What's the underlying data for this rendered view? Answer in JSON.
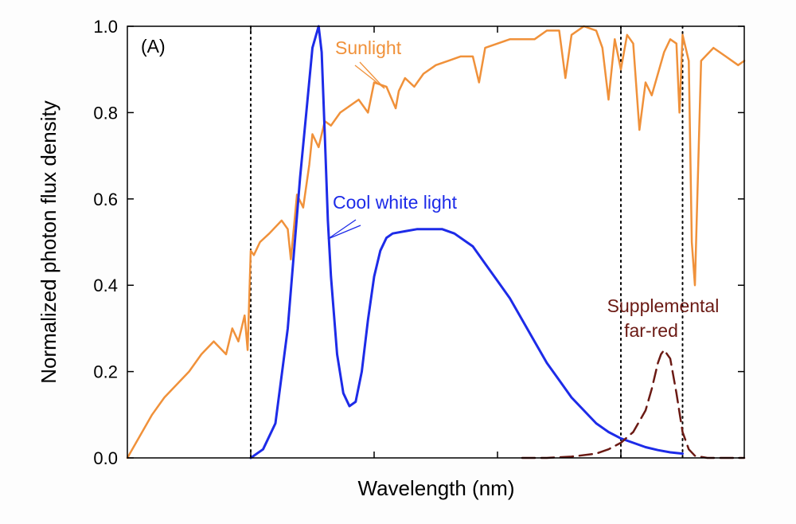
{
  "chart_data": {
    "type": "line",
    "panel_label": "(A)",
    "xlabel": "Wavelength (nm)",
    "ylabel": "Normalized photon flux density",
    "ylim": [
      0,
      1
    ],
    "xlim": [
      0,
      1
    ],
    "y_ticks": [
      "0.0",
      "0.2",
      "0.4",
      "0.6",
      "0.8",
      "1.0"
    ],
    "x_tick_labels_shown": false,
    "grid": false,
    "region_dividers": [
      0.2,
      0.8,
      0.9
    ],
    "colors": {
      "sunlight": "#f0913a",
      "cool_white": "#1d2be8",
      "far_red": "#6b1a14"
    },
    "annotations": {
      "sunlight": "Sunlight",
      "cool_white": "Cool white light",
      "far_red_line1": "Supplemental",
      "far_red_line2": "far-red"
    },
    "series": [
      {
        "name": "Sunlight",
        "style": "solid",
        "x": [
          0.0,
          0.02,
          0.04,
          0.06,
          0.08,
          0.1,
          0.12,
          0.14,
          0.16,
          0.17,
          0.18,
          0.19,
          0.195,
          0.2,
          0.205,
          0.215,
          0.23,
          0.25,
          0.26,
          0.265,
          0.275,
          0.285,
          0.295,
          0.3,
          0.31,
          0.32,
          0.33,
          0.345,
          0.355,
          0.375,
          0.39,
          0.4,
          0.42,
          0.435,
          0.44,
          0.45,
          0.465,
          0.48,
          0.5,
          0.52,
          0.54,
          0.56,
          0.57,
          0.58,
          0.6,
          0.62,
          0.64,
          0.66,
          0.68,
          0.7,
          0.71,
          0.72,
          0.74,
          0.76,
          0.77,
          0.78,
          0.79,
          0.8,
          0.81,
          0.82,
          0.83,
          0.84,
          0.85,
          0.87,
          0.88,
          0.89,
          0.895,
          0.9,
          0.91,
          0.915,
          0.92,
          0.93,
          0.95,
          0.97,
          0.99,
          1.0
        ],
        "values": [
          0.0,
          0.05,
          0.1,
          0.14,
          0.17,
          0.2,
          0.24,
          0.27,
          0.24,
          0.3,
          0.27,
          0.33,
          0.25,
          0.48,
          0.47,
          0.5,
          0.52,
          0.55,
          0.53,
          0.46,
          0.61,
          0.58,
          0.68,
          0.75,
          0.72,
          0.78,
          0.77,
          0.8,
          0.81,
          0.83,
          0.8,
          0.87,
          0.86,
          0.81,
          0.85,
          0.88,
          0.86,
          0.89,
          0.91,
          0.92,
          0.93,
          0.93,
          0.87,
          0.95,
          0.96,
          0.97,
          0.97,
          0.97,
          0.99,
          0.99,
          0.88,
          0.98,
          1.0,
          0.99,
          0.95,
          0.83,
          0.97,
          0.9,
          0.98,
          0.96,
          0.76,
          0.87,
          0.84,
          0.94,
          0.97,
          0.96,
          0.8,
          0.98,
          0.92,
          0.5,
          0.4,
          0.92,
          0.95,
          0.93,
          0.91,
          0.92
        ]
      },
      {
        "name": "Cool white light",
        "style": "solid",
        "x": [
          0.2,
          0.22,
          0.24,
          0.26,
          0.28,
          0.29,
          0.3,
          0.31,
          0.315,
          0.32,
          0.325,
          0.33,
          0.34,
          0.35,
          0.36,
          0.37,
          0.38,
          0.39,
          0.4,
          0.41,
          0.42,
          0.43,
          0.45,
          0.47,
          0.49,
          0.51,
          0.53,
          0.55,
          0.56,
          0.58,
          0.6,
          0.62,
          0.64,
          0.66,
          0.68,
          0.7,
          0.72,
          0.74,
          0.76,
          0.78,
          0.8,
          0.82,
          0.84,
          0.86,
          0.88,
          0.9
        ],
        "values": [
          0.0,
          0.02,
          0.08,
          0.3,
          0.65,
          0.8,
          0.95,
          1.0,
          0.94,
          0.75,
          0.55,
          0.42,
          0.24,
          0.15,
          0.12,
          0.13,
          0.2,
          0.32,
          0.42,
          0.48,
          0.51,
          0.52,
          0.525,
          0.53,
          0.53,
          0.53,
          0.52,
          0.5,
          0.49,
          0.45,
          0.41,
          0.37,
          0.32,
          0.27,
          0.22,
          0.18,
          0.14,
          0.11,
          0.08,
          0.06,
          0.045,
          0.035,
          0.025,
          0.018,
          0.013,
          0.01
        ]
      },
      {
        "name": "Supplemental far-red",
        "style": "dashed",
        "x": [
          0.64,
          0.68,
          0.72,
          0.76,
          0.78,
          0.8,
          0.82,
          0.84,
          0.85,
          0.86,
          0.865,
          0.87,
          0.88,
          0.89,
          0.9,
          0.91,
          0.92,
          0.94,
          0.96,
          0.98,
          1.0
        ],
        "values": [
          0.0,
          0.0,
          0.003,
          0.01,
          0.02,
          0.035,
          0.06,
          0.11,
          0.16,
          0.22,
          0.24,
          0.25,
          0.23,
          0.15,
          0.06,
          0.02,
          0.005,
          0.0,
          0.0,
          0.0,
          0.0
        ]
      }
    ]
  }
}
